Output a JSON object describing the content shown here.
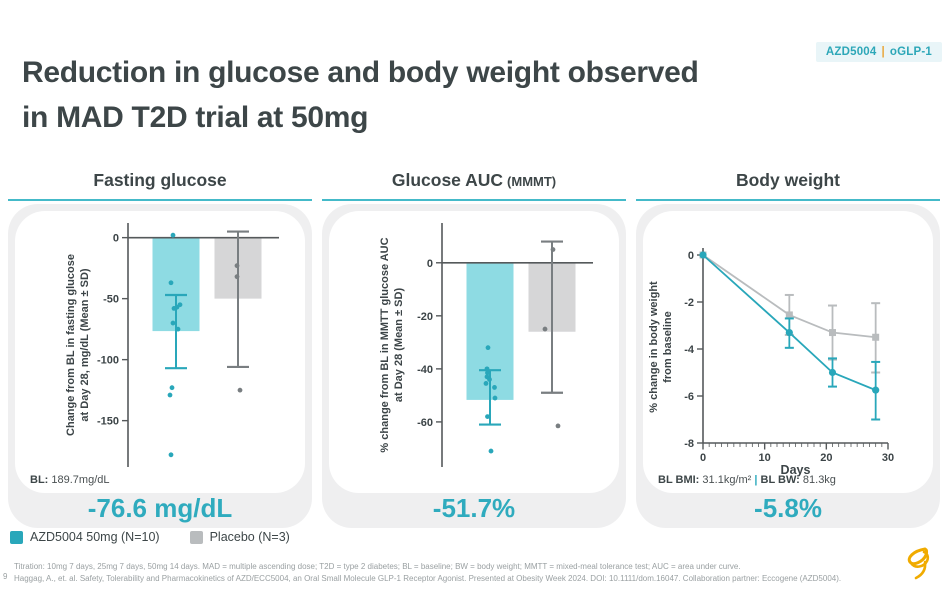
{
  "badge": {
    "product": "AZD5004",
    "separator": "|",
    "program": "oGLP-1"
  },
  "title": {
    "line1": "Reduction in glucose and body weight observed",
    "line2": "in MAD T2D trial at 50mg"
  },
  "legend": [
    {
      "label": "AZD5004 50mg (N=10)",
      "color": "#29a7ba"
    },
    {
      "label": "Placebo (N=3)",
      "color": "#b9bcbe"
    }
  ],
  "footnotes": {
    "page_number": "9",
    "line1": "Titration: 10mg 7 days, 25mg 7 days, 50mg 14 days. MAD = multiple ascending dose; T2D = type 2 diabetes; BL = baseline; BW = body weight; MMTT = mixed-meal tolerance test; AUC = area under curve.",
    "line2": "Haggag, A., et. al. Safety, Tolerability and Pharmacokinetics of AZD/ECC5004, an Oral Small Molecule GLP-1 Receptor Agonist. Presented at Obesity Week 2024. DOI: 10.1111/dom.16047. Collaboration partner: Eccogene (AZD5004)."
  },
  "colors": {
    "teal_strong": "#29a7ba",
    "teal_bar_fill": "#8edbe3",
    "teal_stat_text": "#2fabbe",
    "gray_bar_fill": "#d6d6d7",
    "gray_strong": "#797e81",
    "gray_line": "#b9bcbe",
    "header_underline": "#44bac9",
    "gold": "#f0ab00",
    "axis": "#55595b"
  },
  "chart_data": [
    {
      "type": "bar",
      "header": "Fasting glucose",
      "header_suffix": "",
      "ylabel_lines": [
        "Change from BL in fasting glucose",
        "at Day 28, mg/dL (Mean ± SD)"
      ],
      "yticks": [
        0,
        -50,
        -100,
        -150
      ],
      "ylim": [
        12,
        -188
      ],
      "series": [
        {
          "name": "AZD5004 50mg (N=10)",
          "mean": -76.6,
          "err": [
            -47,
            -107
          ],
          "fill": "#8edbe3",
          "color": "#29a7ba",
          "points": [
            2,
            -37,
            -55,
            -57,
            -58,
            -70,
            -75,
            -123,
            -129,
            -178
          ],
          "points_dx": [
            -3,
            -5,
            4,
            1,
            -2,
            -3,
            2,
            -4,
            -6,
            -5
          ]
        },
        {
          "name": "Placebo (N=3)",
          "mean": -50,
          "err": [
            5,
            -106
          ],
          "fill": "#d6d6d7",
          "color": "#797e81",
          "points": [
            -23,
            -32,
            -125
          ],
          "points_dx": [
            -1,
            -1,
            2
          ]
        }
      ],
      "baseline_note": [
        {
          "b": "BL:"
        },
        {
          "t": " 189.7mg/dL"
        }
      ],
      "stat": "-76.6 mg/dL"
    },
    {
      "type": "bar",
      "header": "Glucose AUC",
      "header_suffix": "(MMMT)",
      "ylabel_lines": [
        "% change from BL in MMTT glucose AUC",
        "at Day 28 (Mean ± SD)"
      ],
      "yticks": [
        0,
        -20,
        -40,
        -60
      ],
      "ylim": [
        15,
        -77
      ],
      "series": [
        {
          "name": "AZD5004 50mg (N=10)",
          "mean": -51.7,
          "err": [
            -40.5,
            -61
          ],
          "fill": "#8edbe3",
          "color": "#29a7ba",
          "points": [
            -32,
            -40,
            -41.5,
            -43,
            -44,
            -45.5,
            -47,
            -51,
            -58,
            -71
          ],
          "points_dx": [
            -2,
            -3,
            -2.5,
            -3,
            -0.5,
            -4,
            4.5,
            5,
            -2.5,
            1
          ]
        },
        {
          "name": "Placebo (N=3)",
          "mean": -26,
          "err": [
            8,
            -49
          ],
          "fill": "#d6d6d7",
          "color": "#797e81",
          "points": [
            5,
            -25,
            -61.5
          ],
          "points_dx": [
            1,
            -7,
            6
          ]
        }
      ],
      "stat": "-51.7%"
    },
    {
      "type": "line",
      "header": "Body weight",
      "header_suffix": "",
      "ylabel_lines": [
        "% change in body weight",
        "from baseline"
      ],
      "yticks": [
        0,
        -2,
        -4,
        -6,
        -8
      ],
      "ylim": [
        0,
        -8
      ],
      "xlabel": "Days",
      "xticks": [
        0,
        10,
        20,
        30
      ],
      "xlim": [
        0,
        30
      ],
      "series": [
        {
          "name": "AZD5004 50mg (N=10)",
          "marker": "circle",
          "color": "#29a7ba",
          "x": [
            0,
            14,
            21,
            28
          ],
          "y": [
            0,
            -3.3,
            -5.0,
            -5.75
          ],
          "err_lo": [
            0,
            -3.95,
            -5.6,
            -7.0
          ],
          "err_hi": [
            0,
            -2.7,
            -4.4,
            -4.55
          ]
        },
        {
          "name": "Placebo (N=3)",
          "marker": "square",
          "color": "#b9bcbe",
          "x": [
            0,
            14,
            21,
            28
          ],
          "y": [
            0,
            -2.55,
            -3.3,
            -3.5
          ],
          "err_lo": [
            0,
            -3.4,
            -4.45,
            -5.0
          ],
          "err_hi": [
            0,
            -1.7,
            -2.15,
            -2.05
          ]
        }
      ],
      "baseline_note": [
        {
          "b": "BL BMI:"
        },
        {
          "t": " 31.1kg/m²"
        },
        {
          "sep": " | "
        },
        {
          "b": "BL BW:"
        },
        {
          "t": " 81.3kg"
        }
      ],
      "stat": "-5.8%"
    }
  ]
}
